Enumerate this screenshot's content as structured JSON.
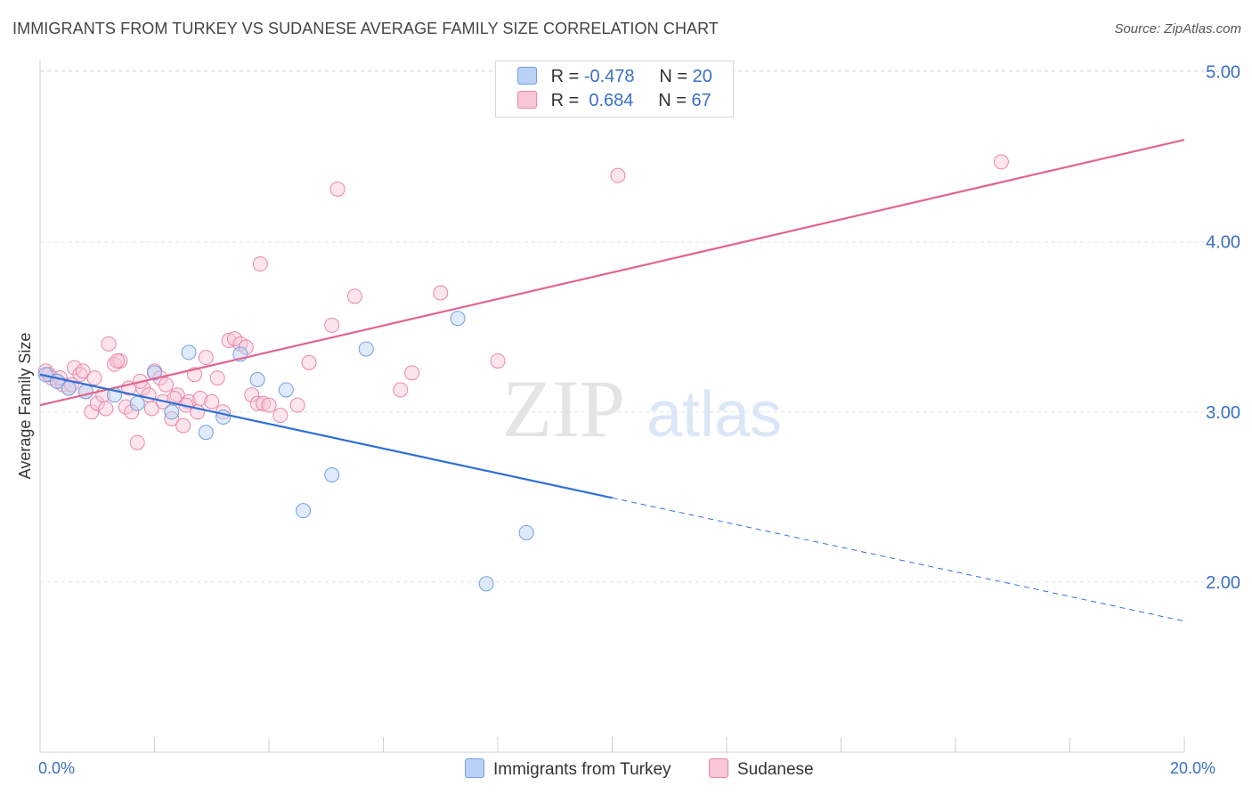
{
  "header": {
    "title": "IMMIGRANTS FROM TURKEY VS SUDANESE AVERAGE FAMILY SIZE CORRELATION CHART",
    "source": "Source: ZipAtlas.com"
  },
  "watermark": {
    "zip": "ZIP",
    "atlas": "atlas"
  },
  "legend": {
    "rows": [
      {
        "r_label": "R =",
        "r_value": "-0.478",
        "n_label": "N =",
        "n_value": "20",
        "color": "#6fa0e6",
        "fill": "#b9d2f5"
      },
      {
        "r_label": "R =",
        "r_value": "0.684",
        "n_label": "N =",
        "n_value": "67",
        "color": "#ea86a8",
        "fill": "#f8c6d6"
      }
    ]
  },
  "bottom_legend": {
    "items": [
      {
        "label": "Immigrants from Turkey",
        "color": "#6fa0e6",
        "fill": "#b9d2f5"
      },
      {
        "label": "Sudanese",
        "color": "#ea86a8",
        "fill": "#f8c6d6"
      }
    ]
  },
  "chart_data": {
    "type": "scatter",
    "title": "IMMIGRANTS FROM TURKEY VS SUDANESE AVERAGE FAMILY SIZE CORRELATION CHART",
    "xlabel": "",
    "ylabel": "Average Family Size",
    "xlim": [
      0,
      20
    ],
    "ylim": [
      1.0,
      5.1
    ],
    "x_unit": "%",
    "y_ticks": [
      2.0,
      3.0,
      4.0,
      5.0
    ],
    "y_tick_labels": [
      "2.00",
      "3.00",
      "4.00",
      "5.00"
    ],
    "x_tick_labels": [
      "0.0%",
      "20.0%"
    ],
    "grid": true,
    "legend_position": "top-center",
    "series": [
      {
        "name": "Immigrants from Turkey",
        "color": "#6fa0e6",
        "fill": "#b9d2f5",
        "line_color": "#2f6fd6",
        "trend": {
          "x0": 0,
          "y0": 3.22,
          "x1": 20,
          "y1": 1.77,
          "solid_until_x": 10
        },
        "points": [
          [
            0.1,
            3.22
          ],
          [
            0.5,
            3.14
          ],
          [
            0.8,
            3.12
          ],
          [
            1.3,
            3.1
          ],
          [
            1.7,
            3.05
          ],
          [
            2.0,
            3.23
          ],
          [
            2.3,
            3.0
          ],
          [
            2.6,
            3.35
          ],
          [
            2.9,
            2.88
          ],
          [
            3.2,
            2.97
          ],
          [
            3.5,
            3.34
          ],
          [
            3.8,
            3.19
          ],
          [
            4.3,
            3.13
          ],
          [
            4.6,
            2.42
          ],
          [
            5.1,
            2.63
          ],
          [
            5.7,
            3.37
          ],
          [
            7.3,
            3.55
          ],
          [
            7.8,
            1.99
          ],
          [
            8.5,
            2.29
          ],
          [
            0.3,
            3.18
          ]
        ]
      },
      {
        "name": "Sudanese",
        "color": "#ea86a8",
        "fill": "#f8c6d6",
        "line_color": "#e06593",
        "trend": {
          "x0": 0,
          "y0": 3.04,
          "x1": 20,
          "y1": 4.6
        },
        "points": [
          [
            0.1,
            3.24
          ],
          [
            0.2,
            3.2
          ],
          [
            0.3,
            3.18
          ],
          [
            0.4,
            3.16
          ],
          [
            0.5,
            3.14
          ],
          [
            0.6,
            3.26
          ],
          [
            0.7,
            3.22
          ],
          [
            0.8,
            3.12
          ],
          [
            0.9,
            3.0
          ],
          [
            1.0,
            3.05
          ],
          [
            1.1,
            3.1
          ],
          [
            1.2,
            3.4
          ],
          [
            1.3,
            3.28
          ],
          [
            1.4,
            3.3
          ],
          [
            1.5,
            3.03
          ],
          [
            1.6,
            3.0
          ],
          [
            1.7,
            2.82
          ],
          [
            1.8,
            3.14
          ],
          [
            1.9,
            3.1
          ],
          [
            2.0,
            3.24
          ],
          [
            2.1,
            3.2
          ],
          [
            2.2,
            3.16
          ],
          [
            2.3,
            2.96
          ],
          [
            2.4,
            3.1
          ],
          [
            2.5,
            2.92
          ],
          [
            2.6,
            3.06
          ],
          [
            2.7,
            3.22
          ],
          [
            2.8,
            3.08
          ],
          [
            2.9,
            3.32
          ],
          [
            3.0,
            3.06
          ],
          [
            3.1,
            3.2
          ],
          [
            3.2,
            3.0
          ],
          [
            3.3,
            3.42
          ],
          [
            3.4,
            3.43
          ],
          [
            3.5,
            3.4
          ],
          [
            3.6,
            3.38
          ],
          [
            3.7,
            3.1
          ],
          [
            3.8,
            3.05
          ],
          [
            3.9,
            3.05
          ],
          [
            4.0,
            3.04
          ],
          [
            4.2,
            2.98
          ],
          [
            4.5,
            3.04
          ],
          [
            4.7,
            3.29
          ],
          [
            5.1,
            3.51
          ],
          [
            5.2,
            4.31
          ],
          [
            5.5,
            3.68
          ],
          [
            3.85,
            3.87
          ],
          [
            6.3,
            3.13
          ],
          [
            6.5,
            3.23
          ],
          [
            7.0,
            3.7
          ],
          [
            8.0,
            3.3
          ],
          [
            10.1,
            4.39
          ],
          [
            16.8,
            4.47
          ],
          [
            0.15,
            3.22
          ],
          [
            0.35,
            3.2
          ],
          [
            0.55,
            3.16
          ],
          [
            0.75,
            3.24
          ],
          [
            0.95,
            3.2
          ],
          [
            1.15,
            3.02
          ],
          [
            1.35,
            3.3
          ],
          [
            1.55,
            3.14
          ],
          [
            1.75,
            3.18
          ],
          [
            1.95,
            3.02
          ],
          [
            2.15,
            3.06
          ],
          [
            2.35,
            3.08
          ],
          [
            2.55,
            3.04
          ],
          [
            2.75,
            3.0
          ]
        ]
      }
    ]
  }
}
